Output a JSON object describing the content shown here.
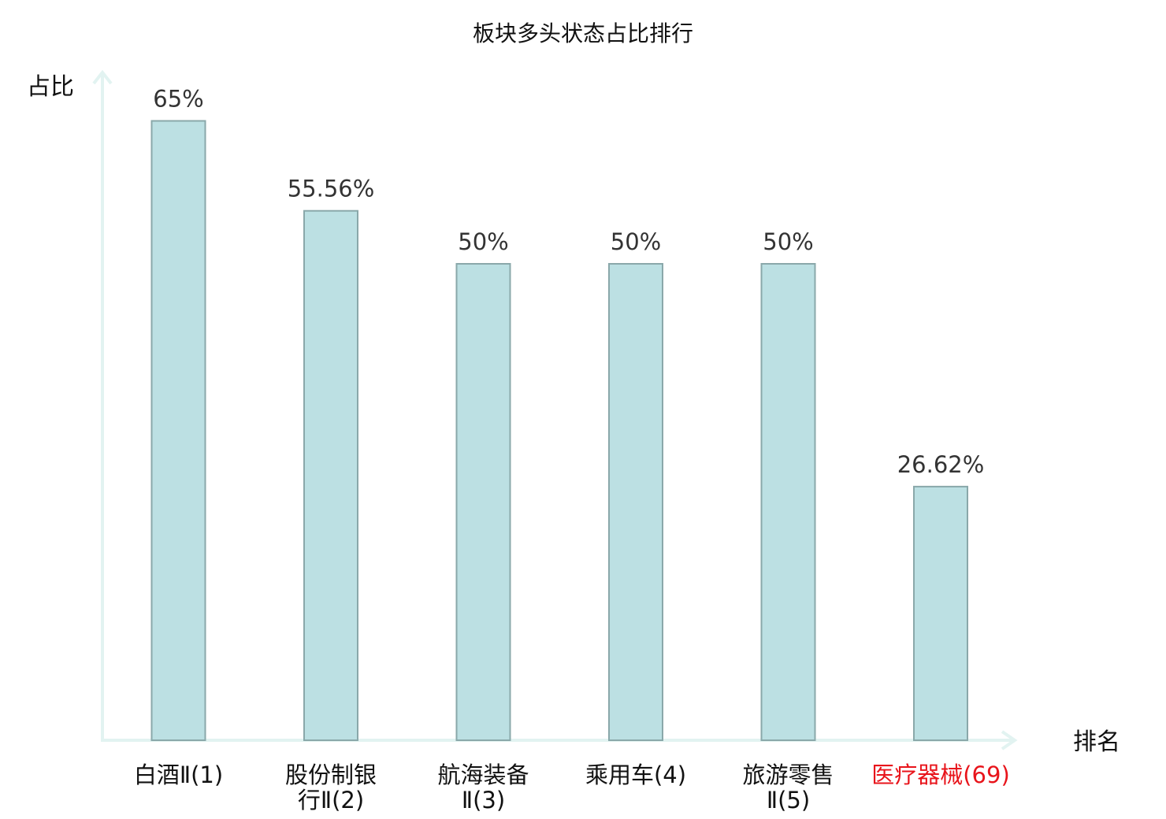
{
  "chart_data": {
    "type": "bar",
    "title": "板块多头状态占比排行",
    "ylabel": "占比",
    "xlabel": "排名",
    "ylim": [
      0,
      72
    ],
    "grid": false,
    "categories": [
      [
        "白酒Ⅱ(1)"
      ],
      [
        "股份制银",
        "行Ⅱ(2)"
      ],
      [
        "航海装备",
        "Ⅱ(3)"
      ],
      [
        "乘用车(4)"
      ],
      [
        "旅游零售",
        "Ⅱ(5)"
      ],
      [
        "医疗器械(69)"
      ]
    ],
    "values": [
      65,
      55.56,
      50,
      50,
      50,
      26.62
    ],
    "value_labels": [
      "65%",
      "55.56%",
      "50%",
      "50%",
      "50%",
      "26.62%"
    ],
    "highlight_index": 5,
    "colors": {
      "bar_fill": "#bce0e3",
      "bar_stroke": "#8aa8aa",
      "axis": "#e2f3f1",
      "highlight_text": "#e8141b"
    }
  }
}
